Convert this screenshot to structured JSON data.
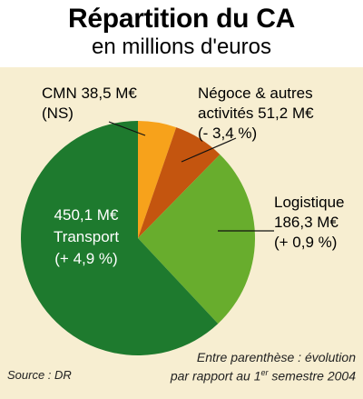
{
  "header": {
    "title": "Répartition du CA",
    "subtitle": "en millions d'euros"
  },
  "chart_data": {
    "type": "pie",
    "title": "Répartition du CA",
    "subtitle": "en millions d'euros",
    "slices": [
      {
        "name": "CMN",
        "value": 38.5,
        "evolution": "NS",
        "color": "#f7a21b",
        "label": [
          "CMN 38,5 M€",
          "(NS)"
        ]
      },
      {
        "name": "Négoce & autres activités",
        "value": 51.2,
        "evolution": "- 3,4 %",
        "color": "#c4550f",
        "label": [
          "Négoce & autres",
          "activités 51,2 M€",
          "(- 3,4 %)"
        ]
      },
      {
        "name": "Logistique",
        "value": 186.3,
        "evolution": "+ 0,9 %",
        "color": "#68ad2d",
        "label": [
          "Logistique",
          "186,3 M€",
          "(+ 0,9 %)"
        ]
      },
      {
        "name": "Transport",
        "value": 450.1,
        "evolution": "+ 4,9 %",
        "color": "#1e7a2e",
        "label": [
          "450,1 M€",
          "Transport",
          "(+ 4,9 %)"
        ]
      }
    ]
  },
  "footer": {
    "note_line1": "Entre parenthèse : évolution",
    "note_line2_pre": "par rapport au 1",
    "note_sup": "er",
    "note_line2_post": " semestre 2004",
    "source": "Source : DR"
  }
}
